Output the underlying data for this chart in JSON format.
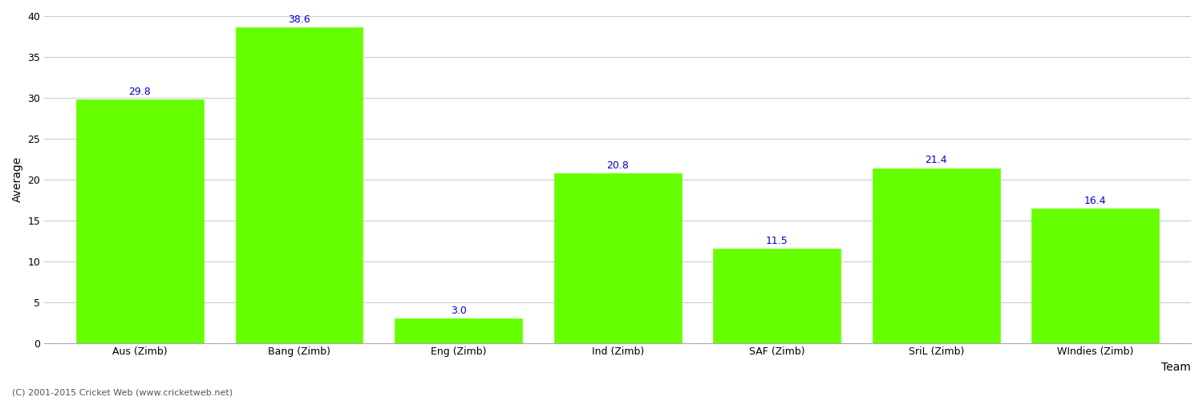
{
  "categories": [
    "Aus (Zimb)",
    "Bang (Zimb)",
    "Eng (Zimb)",
    "Ind (Zimb)",
    "SAF (Zimb)",
    "SriL (Zimb)",
    "WIndies (Zimb)"
  ],
  "values": [
    29.8,
    38.6,
    3.0,
    20.8,
    11.5,
    21.4,
    16.4
  ],
  "bar_color": "#66ff00",
  "bar_edge_color": "#66ff00",
  "xlabel": "Team",
  "ylabel": "Average",
  "ylim": [
    0,
    40
  ],
  "yticks": [
    0,
    5,
    10,
    15,
    20,
    25,
    30,
    35,
    40
  ],
  "annotation_color": "#0000cc",
  "annotation_fontsize": 9,
  "axis_label_fontsize": 10,
  "tick_fontsize": 9,
  "background_color": "#ffffff",
  "grid_color": "#cccccc",
  "footer_text": "(C) 2001-2015 Cricket Web (www.cricketweb.net)",
  "footer_fontsize": 8,
  "footer_color": "#555555"
}
